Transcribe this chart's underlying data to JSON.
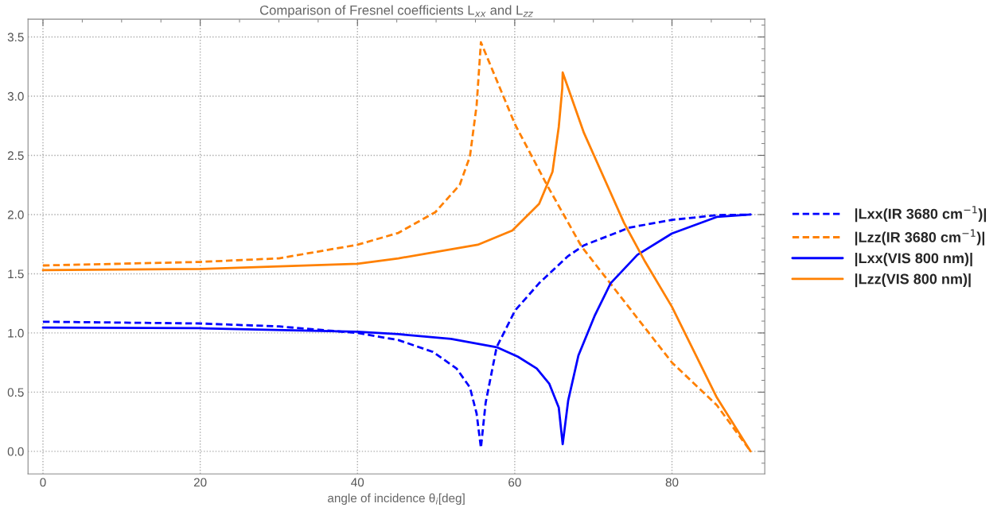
{
  "chart_data": {
    "type": "line",
    "title": "Comparison of Fresnel coefficients L$_{xx}$ and L$_{zz}$",
    "xlabel": "angle of incidence θ$_{i}$[deg]",
    "xlim": [
      -1.9,
      91.8
    ],
    "ylim": [
      -0.19,
      3.65
    ],
    "xticks": [
      0,
      20,
      40,
      60,
      80
    ],
    "yticks": [
      {
        "value": 0,
        "label": "0.0"
      },
      0.5,
      {
        "value": 1,
        "label": "1.0"
      },
      1.5,
      {
        "value": 2,
        "label": "2.0"
      },
      2.5,
      {
        "value": 3,
        "label": "3.0"
      },
      3.5
    ],
    "grid": true,
    "legend": "right",
    "series": [
      {
        "name": "|Lxx(IR 3680 cm$^{−1}$)|",
        "color": "#0000ff",
        "line_style": "dashed",
        "x": [
          0,
          20,
          30,
          40,
          45.2,
          49.6,
          52.6,
          54.3,
          55.15,
          55.7,
          56.3,
          57.7,
          60.05,
          63.1,
          66.8,
          68.8,
          74.6,
          80,
          85.7,
          90
        ],
        "values": [
          1.095,
          1.08,
          1.055,
          1.0,
          0.94,
          0.84,
          0.7,
          0.54,
          0.32,
          0.03,
          0.41,
          0.88,
          1.19,
          1.42,
          1.65,
          1.74,
          1.89,
          1.955,
          1.995,
          2.0
        ]
      },
      {
        "name": "|Lzz(IR 3680 cm$^{−1}$)|",
        "color": "#ff8000",
        "line_style": "dashed",
        "x": [
          0,
          20,
          30,
          40,
          45.2,
          49.9,
          53.0,
          54.3,
          55.15,
          55.5,
          55.7,
          60.05,
          64.1,
          68.5,
          80,
          85.7,
          90
        ],
        "values": [
          1.57,
          1.6,
          1.63,
          1.745,
          1.845,
          2.02,
          2.25,
          2.49,
          2.92,
          3.26,
          3.455,
          2.76,
          2.25,
          1.73,
          0.75,
          0.39,
          0.0
        ]
      },
      {
        "name": "|Lxx(VIS 800 nm)|",
        "color": "#0000ff",
        "line_style": "solid",
        "x": [
          0,
          20,
          40,
          45.2,
          51.9,
          57.7,
          60.4,
          62.8,
          64.4,
          65.6,
          66.1,
          66.8,
          68.1,
          70.2,
          72.2,
          75.6,
          80,
          85.7,
          90
        ],
        "values": [
          1.045,
          1.04,
          1.01,
          0.99,
          0.95,
          0.88,
          0.8,
          0.7,
          0.57,
          0.37,
          0.06,
          0.43,
          0.81,
          1.15,
          1.42,
          1.66,
          1.84,
          1.98,
          2.0
        ]
      },
      {
        "name": "|Lzz(VIS 800 nm)|",
        "color": "#ff8000",
        "line_style": "solid",
        "x": [
          0,
          20,
          40,
          45.2,
          55.3,
          59.7,
          63.1,
          64.8,
          65.6,
          66.05,
          66.1,
          68.8,
          73.9,
          76.6,
          80,
          85.7,
          90
        ],
        "values": [
          1.53,
          1.54,
          1.585,
          1.63,
          1.745,
          1.865,
          2.09,
          2.36,
          2.74,
          3.07,
          3.2,
          2.69,
          1.93,
          1.6,
          1.22,
          0.455,
          0.0
        ]
      }
    ]
  }
}
